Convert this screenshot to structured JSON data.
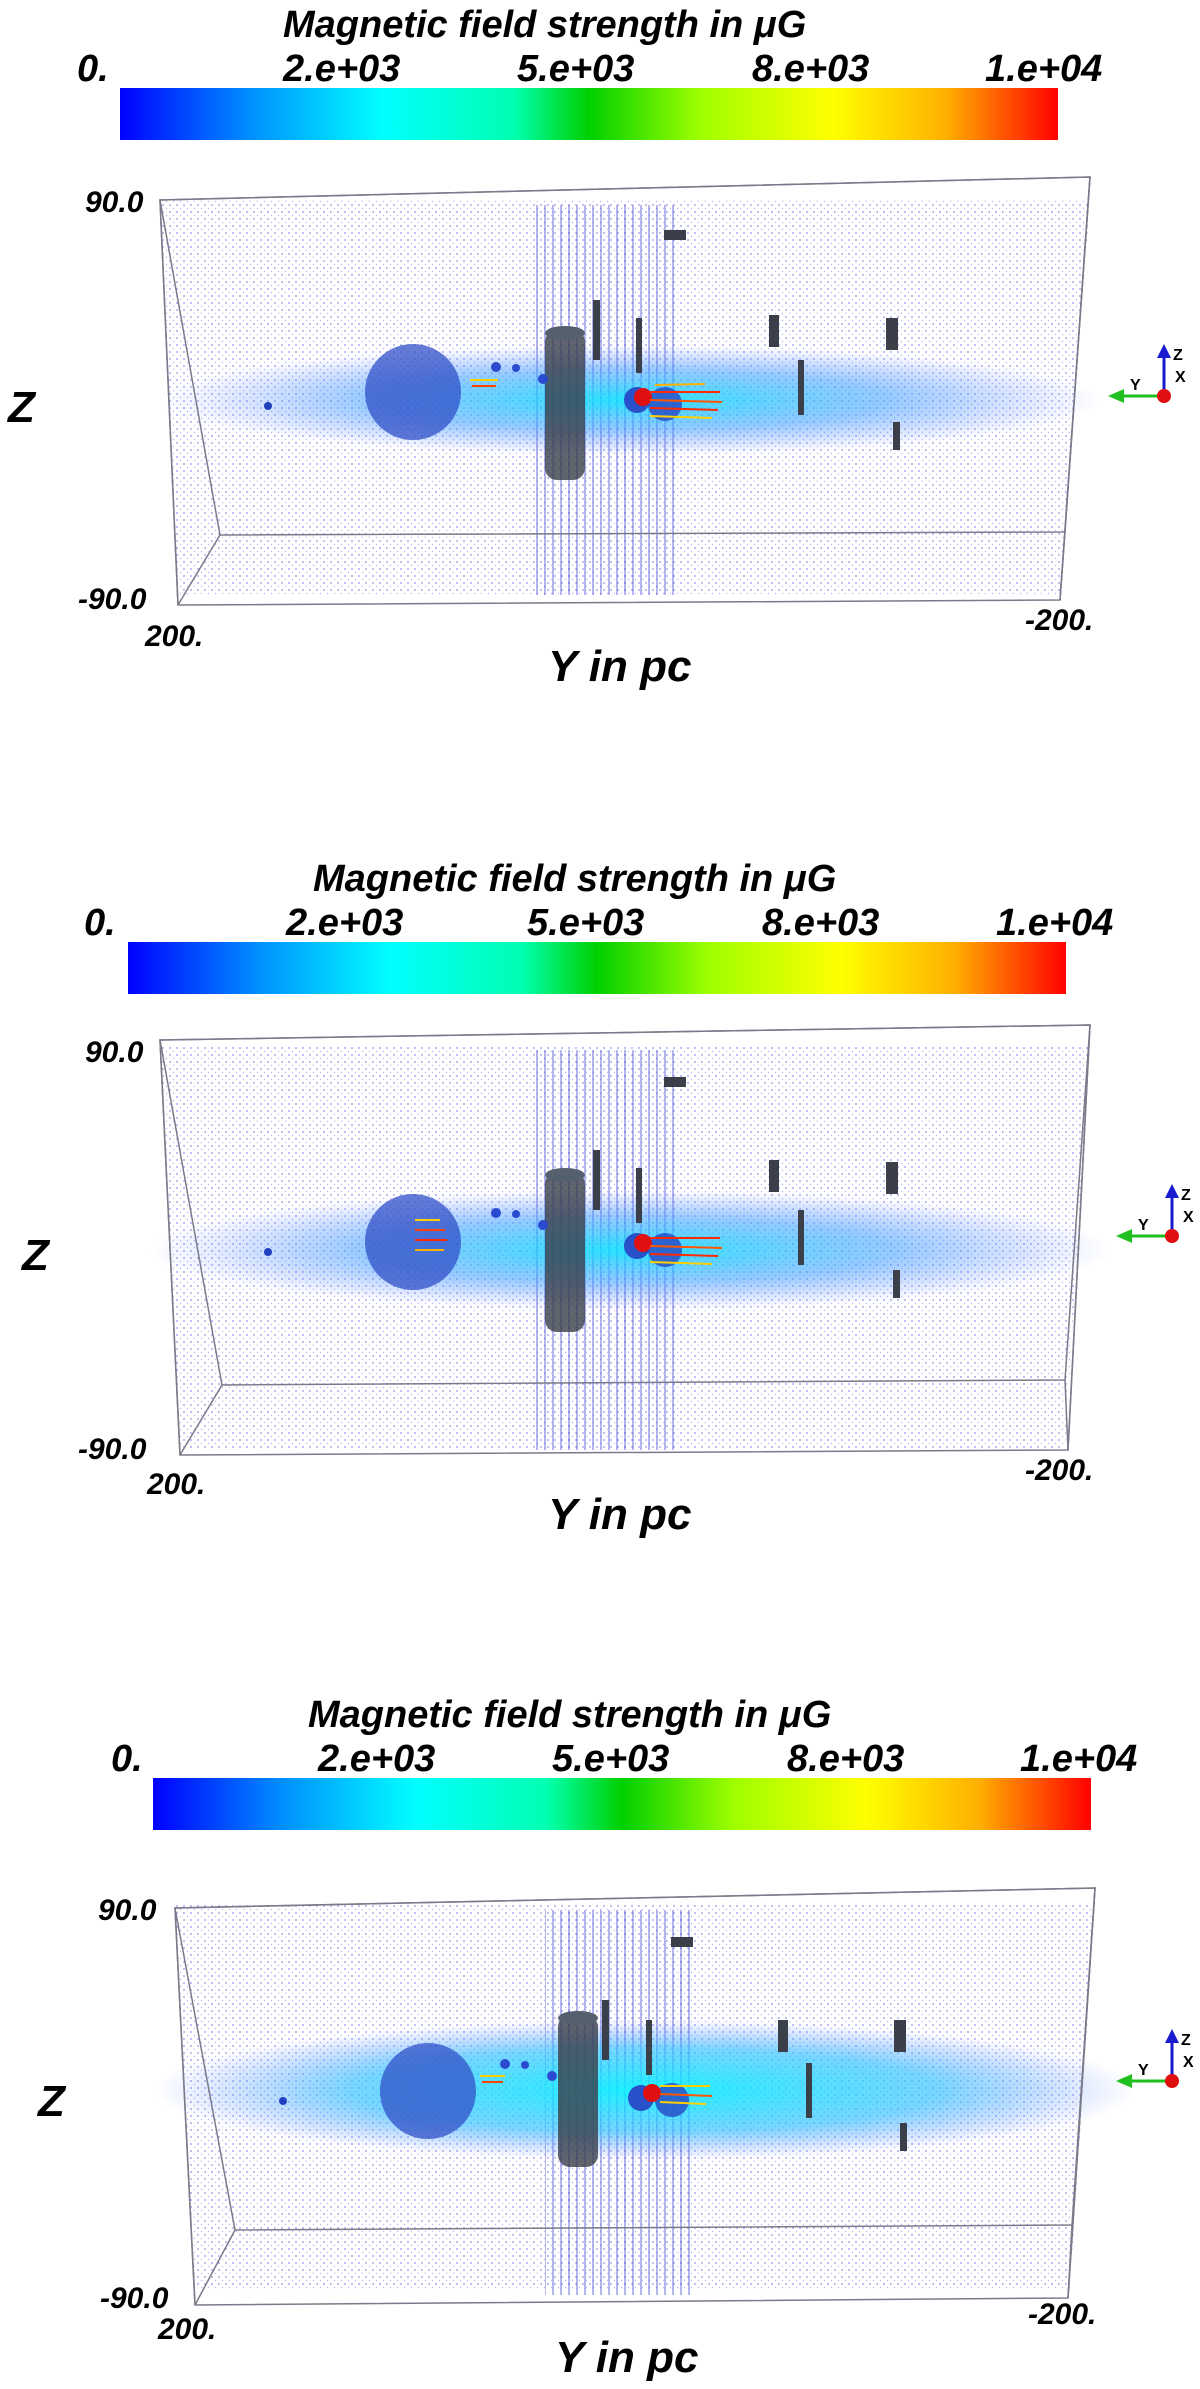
{
  "panels": [
    {
      "colorbar": {
        "title": "Magnetic field strength in μG",
        "ticks": [
          "0.",
          "2.e+03",
          "5.e+03",
          "8.e+03",
          "1.e+04"
        ],
        "range": [
          0,
          10000
        ]
      },
      "axes": {
        "z_label": "Z",
        "y_label": "Y in pc",
        "z_min": "-90.0",
        "z_max": "90.0",
        "y_left": "200.",
        "y_right": "-200."
      },
      "orientation": {
        "z": "Z",
        "x": "X",
        "y": "Y"
      },
      "colors": {
        "disk": "#40c8ff",
        "box": "#7a7a8a",
        "particles": "#3b3bd6",
        "objects": "#3a3f4a",
        "marker": "#e01010"
      }
    },
    {
      "colorbar": {
        "title": "Magnetic field strength in μG",
        "ticks": [
          "0.",
          "2.e+03",
          "5.e+03",
          "8.e+03",
          "1.e+04"
        ],
        "range": [
          0,
          10000
        ]
      },
      "axes": {
        "z_label": "Z",
        "y_label": "Y in pc",
        "z_min": "-90.0",
        "z_max": "90.0",
        "y_left": "200.",
        "y_right": "-200."
      },
      "orientation": {
        "z": "Z",
        "x": "X",
        "y": "Y"
      },
      "colors": {
        "disk": "#40c8ff",
        "box": "#7a7a8a",
        "particles": "#3b3bd6",
        "objects": "#3a3f4a",
        "marker": "#e01010"
      }
    },
    {
      "colorbar": {
        "title": "Magnetic field strength in μG",
        "ticks": [
          "0.",
          "2.e+03",
          "5.e+03",
          "8.e+03",
          "1.e+04"
        ],
        "range": [
          0,
          10000
        ]
      },
      "axes": {
        "z_label": "Z",
        "y_label": "Y in pc",
        "z_min": "-90.0",
        "z_max": "90.0",
        "y_left": "200.",
        "y_right": "-200."
      },
      "orientation": {
        "z": "Z",
        "x": "X",
        "y": "Y"
      },
      "colors": {
        "disk": "#40c8ff",
        "box": "#7a7a8a",
        "particles": "#3b3bd6",
        "objects": "#3a3f4a",
        "marker": "#e01010"
      }
    }
  ]
}
